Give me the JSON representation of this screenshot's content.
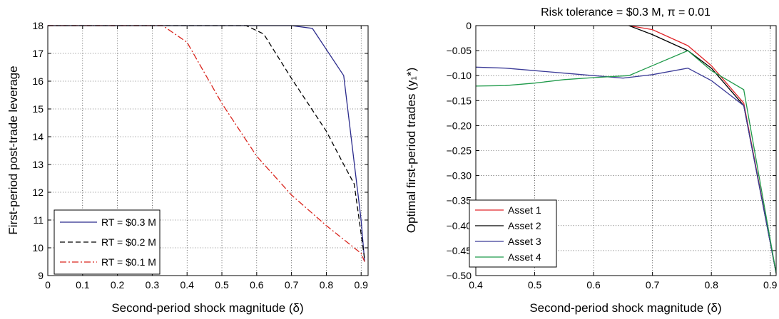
{
  "chart_data": [
    {
      "type": "line",
      "title": "",
      "xlabel": "Second-period shock magnitude (δ)",
      "ylabel": "First-period post-trade leverage",
      "xlim": [
        0,
        0.92
      ],
      "ylim": [
        9,
        18
      ],
      "xticks": [
        0,
        0.1,
        0.2,
        0.3,
        0.4,
        0.5,
        0.6,
        0.7,
        0.8,
        0.9
      ],
      "xtick_labels": [
        "0",
        "0.1",
        "0.2",
        "0.3",
        "0.4",
        "0.5",
        "0.6",
        "0.7",
        "0.8",
        "0.9"
      ],
      "yticks": [
        9,
        10,
        11,
        12,
        13,
        14,
        15,
        16,
        17,
        18
      ],
      "ytick_labels": [
        "9",
        "10",
        "11",
        "12",
        "13",
        "14",
        "15",
        "16",
        "17",
        "18"
      ],
      "grid": true,
      "legend": "bottom-left",
      "series": [
        {
          "name": "RT = $0.3 M",
          "color": "#2b2b8c",
          "dash": "solid",
          "x": [
            0,
            0.1,
            0.2,
            0.3,
            0.4,
            0.5,
            0.6,
            0.7,
            0.76,
            0.85,
            0.9,
            0.91
          ],
          "y": [
            18,
            18,
            18,
            18,
            18,
            18,
            18,
            18,
            17.9,
            16.2,
            11.0,
            9.5
          ]
        },
        {
          "name": "RT = $0.2 M",
          "color": "#000000",
          "dash": "dashed",
          "x": [
            0,
            0.1,
            0.2,
            0.3,
            0.4,
            0.5,
            0.57,
            0.62,
            0.7,
            0.8,
            0.85,
            0.88,
            0.91
          ],
          "y": [
            18,
            18,
            18,
            18,
            18,
            18,
            18,
            17.7,
            16.1,
            14.2,
            13.0,
            12.3,
            9.6
          ]
        },
        {
          "name": "RT = $0.1 M",
          "color": "#d9241c",
          "dash": "dashdot",
          "x": [
            0,
            0.1,
            0.2,
            0.3,
            0.33,
            0.4,
            0.5,
            0.6,
            0.7,
            0.8,
            0.9,
            0.91
          ],
          "y": [
            18,
            18,
            18,
            18,
            18,
            17.4,
            15.2,
            13.3,
            11.9,
            10.8,
            9.8,
            9.5
          ]
        }
      ]
    },
    {
      "type": "line",
      "title": "Risk tolerance = $0.3 M, π = 0.01",
      "xlabel": "Second-period shock magnitude (δ)",
      "ylabel": "Optimal first-period trades (y₁*)",
      "xlim": [
        0.4,
        0.91
      ],
      "ylim": [
        -0.5,
        0
      ],
      "xticks": [
        0.4,
        0.5,
        0.6,
        0.7,
        0.8,
        0.9
      ],
      "xtick_labels": [
        "0.4",
        "0.5",
        "0.6",
        "0.7",
        "0.8",
        "0.9"
      ],
      "yticks": [
        0,
        -0.05,
        -0.1,
        -0.15,
        -0.2,
        -0.25,
        -0.3,
        -0.35,
        -0.4,
        -0.45,
        -0.5
      ],
      "ytick_labels": [
        "0",
        "−0.05",
        "−0.10",
        "−0.15",
        "−0.20",
        "−0.25",
        "−0.30",
        "−0.35",
        "−0.40",
        "−0.45",
        "−0.50"
      ],
      "grid": true,
      "legend": "bottom-left",
      "series": [
        {
          "name": "Asset 1",
          "color": "#e0262a",
          "x": [
            0.66,
            0.7,
            0.76,
            0.8,
            0.855,
            0.91
          ],
          "y": [
            0,
            -0.008,
            -0.04,
            -0.08,
            -0.155,
            -0.495
          ]
        },
        {
          "name": "Asset 2",
          "color": "#000000",
          "x": [
            0.66,
            0.7,
            0.76,
            0.8,
            0.855,
            0.91
          ],
          "y": [
            0,
            -0.018,
            -0.05,
            -0.085,
            -0.16,
            -0.495
          ]
        },
        {
          "name": "Asset 3",
          "color": "#3c3c98",
          "x": [
            0.4,
            0.45,
            0.5,
            0.55,
            0.6,
            0.65,
            0.7,
            0.76,
            0.8,
            0.855,
            0.91
          ],
          "y": [
            -0.083,
            -0.085,
            -0.09,
            -0.095,
            -0.1,
            -0.105,
            -0.098,
            -0.085,
            -0.11,
            -0.16,
            -0.495
          ]
        },
        {
          "name": "Asset 4",
          "color": "#1f9a4a",
          "x": [
            0.4,
            0.45,
            0.5,
            0.55,
            0.6,
            0.66,
            0.7,
            0.76,
            0.8,
            0.855,
            0.91
          ],
          "y": [
            -0.121,
            -0.12,
            -0.115,
            -0.108,
            -0.104,
            -0.1,
            -0.08,
            -0.05,
            -0.09,
            -0.128,
            -0.495
          ]
        }
      ]
    }
  ]
}
